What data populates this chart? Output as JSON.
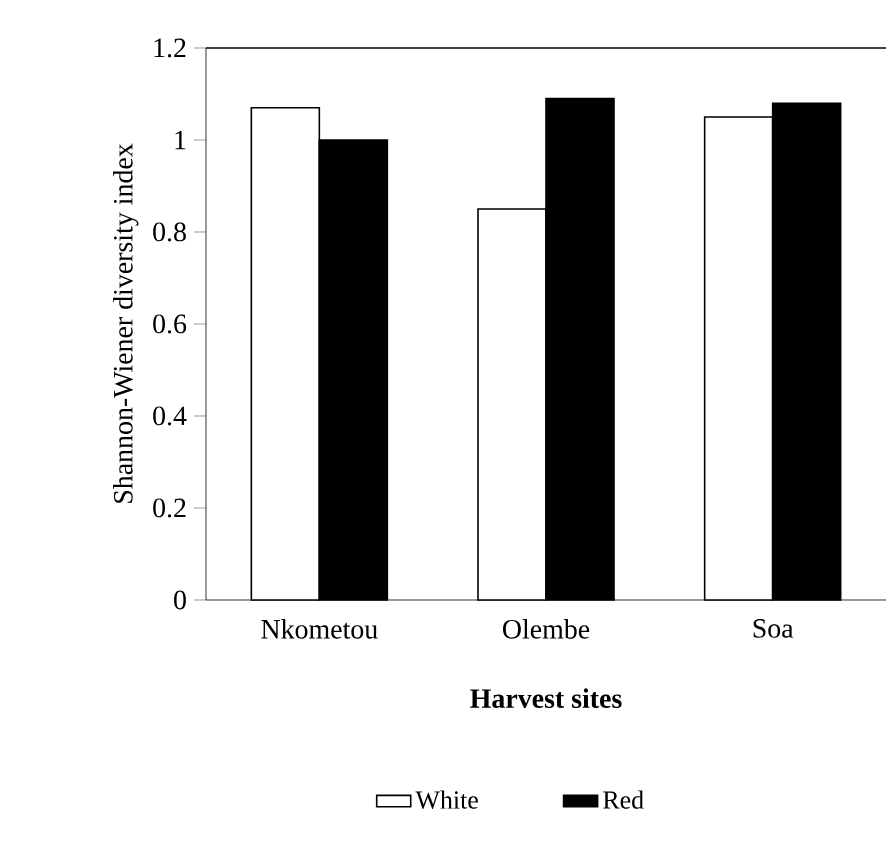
{
  "chart_data": {
    "type": "bar",
    "xlabel": "Harvest sites",
    "ylabel": "Shannon-Wiener diversity index",
    "categories": [
      "Nkometou",
      "Olembe",
      "Soa"
    ],
    "series": [
      {
        "name": "White",
        "color": "#ffffff",
        "values": [
          1.07,
          0.85,
          1.05
        ]
      },
      {
        "name": "Red",
        "color": "#000000",
        "values": [
          1.0,
          1.09,
          1.08
        ]
      }
    ],
    "ylim": [
      0,
      1.2
    ],
    "yticks": [
      0,
      0.2,
      0.4,
      0.6,
      0.8,
      1,
      1.2
    ],
    "grid": false,
    "legend": "bottom"
  }
}
